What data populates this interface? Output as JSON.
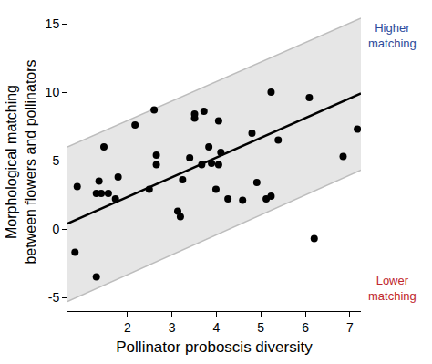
{
  "chart_data": {
    "type": "scatter",
    "x_label": "Pollinator proboscis diversity",
    "y_label": "Morphological matching between flowers and pollinators",
    "x": [
      0.82,
      0.87,
      1.3,
      1.3,
      1.36,
      1.41,
      1.47,
      1.57,
      1.73,
      1.79,
      2.17,
      2.49,
      2.6,
      2.65,
      2.65,
      3.13,
      3.19,
      3.24,
      3.4,
      3.51,
      3.51,
      3.67,
      3.72,
      3.83,
      3.89,
      4.05,
      4.05,
      4.1,
      3.99,
      4.26,
      4.59,
      4.8,
      4.91,
      5.12,
      5.23,
      5.23,
      5.39,
      6.09,
      6.2,
      6.85,
      7.17
    ],
    "values": [
      -1.7,
      3.1,
      -3.5,
      2.6,
      3.5,
      2.6,
      6.0,
      2.6,
      2.2,
      3.8,
      7.6,
      2.9,
      8.7,
      5.4,
      4.7,
      1.3,
      0.9,
      3.6,
      5.2,
      8.1,
      8.4,
      4.7,
      8.6,
      6.0,
      4.8,
      7.9,
      4.7,
      5.6,
      2.9,
      2.2,
      2.1,
      7.0,
      3.4,
      2.2,
      10.0,
      2.4,
      6.5,
      9.6,
      -0.7,
      5.3,
      7.3
    ],
    "color": "#000000",
    "marker": "circle",
    "fit_line": {
      "x": [
        0.65,
        7.25
      ],
      "values": [
        0.4,
        9.9
      ],
      "color": "#000000"
    },
    "band": {
      "x": [
        0.65,
        7.25
      ],
      "lower": [
        -5.3,
        4.3
      ],
      "upper": [
        6.0,
        15.4
      ],
      "color": "#e6e6e6"
    },
    "xlim": [
      0.65,
      7.25
    ],
    "ylim": [
      -6,
      15.8
    ],
    "xticks": [
      2,
      3,
      4,
      5,
      6,
      7
    ],
    "yticks": [
      -5,
      0,
      5,
      10,
      15
    ],
    "grid": false,
    "annotations": [
      {
        "text": "Higher matching",
        "color": "#2c4a9a"
      },
      {
        "text": "Lower matching",
        "color": "#c0282d"
      }
    ]
  }
}
